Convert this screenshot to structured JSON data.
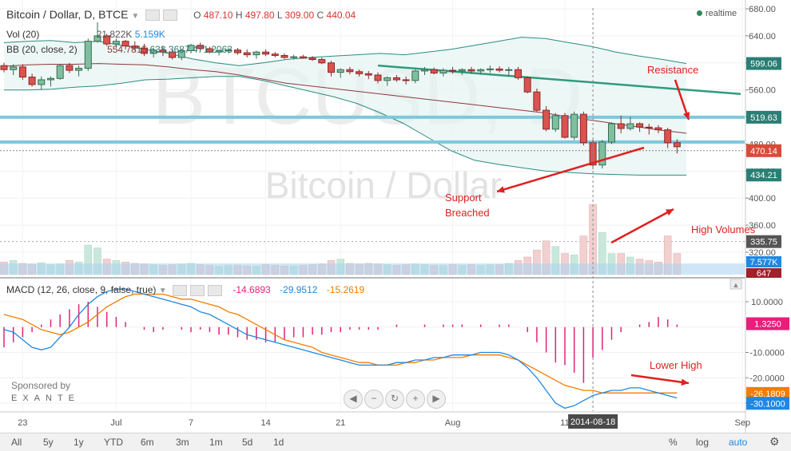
{
  "header": {
    "symbol": "Bitcoin / Dollar, D, BTCE",
    "o_label": "O",
    "o_value": "487.10",
    "h_label": "H",
    "h_value": "497.80",
    "l_label": "L",
    "l_value": "309.00",
    "c_label": "C",
    "c_value": "440.04",
    "realtime": "realtime"
  },
  "vol_legend": {
    "label": "Vol (20)",
    "v1": "21.822K",
    "v2": "5.159K"
  },
  "bb_legend": {
    "label": "BB (20, close, 2)",
    "v1": "554.7815",
    "v2": "638.3687",
    "v3": "471.2063"
  },
  "macd_legend": {
    "label": "MACD (12, 26, close, 9, false, true)",
    "v1": "-14.6893",
    "v2": "-29.9512",
    "v3": "-15.2619"
  },
  "watermark": {
    "big": "BTCUSD, D",
    "small": "Bitcoin / Dollar"
  },
  "sponsor": {
    "line1": "Sponsored by",
    "line2": "EXANTE"
  },
  "price_badges": [
    {
      "text": "599.06",
      "value": 599.06,
      "color": "#2a7f74"
    },
    {
      "text": "519.63",
      "value": 519.63,
      "color": "#2a7f74"
    },
    {
      "text": "470.14",
      "value": 470.14,
      "color": "#d84b3a"
    },
    {
      "text": "434.21",
      "value": 434.21,
      "color": "#2a7f74"
    },
    {
      "text": "335.75",
      "value": 335.75,
      "color": "#555555"
    }
  ],
  "vol_badges": [
    {
      "text": "7.577K",
      "color": "#1e88e5"
    },
    {
      "text": "647",
      "color": "#a0202c"
    }
  ],
  "macd_badges": [
    {
      "text": "1.3250",
      "value": 1.325,
      "color": "#e91e7a"
    },
    {
      "text": "-26.1809",
      "value": -26.1809,
      "color": "#f57c00"
    },
    {
      "text": "-30.1000",
      "value": -30.1,
      "color": "#1e88e5"
    }
  ],
  "annotations": {
    "resistance": "Resistance",
    "support": "Support\nBreached",
    "high_volumes": "High Volumes",
    "lower_high": "Lower High"
  },
  "crosshair_date": "2014-08-18",
  "bottombar": {
    "ranges": [
      "All",
      "5y",
      "1y",
      "YTD",
      "6m",
      "3m",
      "1m",
      "5d",
      "1d"
    ],
    "percent": "%",
    "log": "log",
    "auto": "auto"
  },
  "chart_data": {
    "type": "candlestick",
    "x_ticks": [
      "23",
      "Jul",
      "7",
      "14",
      "21",
      "Aug",
      "11",
      "Sep"
    ],
    "price_axis": {
      "ticks": [
        680,
        640,
        600,
        560,
        520,
        480,
        440,
        400,
        360,
        320
      ],
      "range": [
        300,
        690
      ]
    },
    "candles": [
      [
        596,
        600,
        586,
        590
      ],
      [
        590,
        598,
        582,
        594
      ],
      [
        594,
        598,
        575,
        579
      ],
      [
        579,
        584,
        565,
        568
      ],
      [
        568,
        580,
        560,
        575
      ],
      [
        575,
        580,
        565,
        577
      ],
      [
        577,
        598,
        575,
        596
      ],
      [
        596,
        600,
        585,
        589
      ],
      [
        589,
        596,
        580,
        592
      ],
      [
        592,
        636,
        588,
        632
      ],
      [
        632,
        660,
        630,
        640
      ],
      [
        640,
        643,
        625,
        628
      ],
      [
        628,
        636,
        622,
        632
      ],
      [
        632,
        634,
        620,
        625
      ],
      [
        625,
        632,
        618,
        622
      ],
      [
        622,
        628,
        610,
        614
      ],
      [
        614,
        622,
        608,
        619
      ],
      [
        619,
        625,
        610,
        616
      ],
      [
        616,
        619,
        605,
        608
      ],
      [
        608,
        620,
        604,
        618
      ],
      [
        618,
        628,
        614,
        626
      ],
      [
        626,
        630,
        618,
        621
      ],
      [
        621,
        624,
        614,
        616
      ],
      [
        616,
        620,
        611,
        618
      ],
      [
        618,
        622,
        614,
        619
      ],
      [
        619,
        622,
        612,
        615
      ],
      [
        615,
        620,
        608,
        612
      ],
      [
        612,
        618,
        606,
        616
      ],
      [
        616,
        620,
        610,
        613
      ],
      [
        613,
        616,
        608,
        611
      ],
      [
        611,
        614,
        606,
        608
      ],
      [
        608,
        612,
        605,
        609
      ],
      [
        609,
        612,
        606,
        607
      ],
      [
        607,
        610,
        603,
        605
      ],
      [
        605,
        608,
        598,
        600
      ],
      [
        600,
        603,
        580,
        586
      ],
      [
        586,
        592,
        578,
        590
      ],
      [
        590,
        594,
        583,
        587
      ],
      [
        587,
        590,
        580,
        584
      ],
      [
        584,
        588,
        576,
        582
      ],
      [
        582,
        586,
        570,
        574
      ],
      [
        574,
        580,
        566,
        578
      ],
      [
        578,
        582,
        572,
        575
      ],
      [
        575,
        580,
        568,
        574
      ],
      [
        574,
        590,
        570,
        588
      ],
      [
        588,
        594,
        582,
        590
      ],
      [
        590,
        593,
        583,
        585
      ],
      [
        585,
        592,
        580,
        589
      ],
      [
        589,
        594,
        584,
        588
      ],
      [
        588,
        592,
        582,
        590
      ],
      [
        590,
        594,
        584,
        588
      ],
      [
        588,
        592,
        583,
        590
      ],
      [
        590,
        596,
        585,
        591
      ],
      [
        591,
        595,
        586,
        589
      ],
      [
        589,
        594,
        580,
        590
      ],
      [
        590,
        594,
        575,
        578
      ],
      [
        578,
        580,
        555,
        557
      ],
      [
        557,
        562,
        528,
        530
      ],
      [
        530,
        536,
        499,
        502
      ],
      [
        502,
        526,
        498,
        522
      ],
      [
        522,
        526,
        488,
        490
      ],
      [
        490,
        528,
        486,
        524
      ],
      [
        524,
        528,
        478,
        482
      ],
      [
        482,
        486,
        443,
        449
      ],
      [
        449,
        486,
        444,
        483
      ],
      [
        483,
        512,
        480,
        510
      ],
      [
        510,
        522,
        496,
        503
      ],
      [
        503,
        520,
        500,
        510
      ],
      [
        510,
        512,
        498,
        505
      ],
      [
        505,
        510,
        494,
        504
      ],
      [
        504,
        508,
        496,
        501
      ],
      [
        501,
        504,
        474,
        482
      ],
      [
        482,
        487,
        466,
        476
      ]
    ],
    "bb_mid": [
      595,
      597,
      598,
      598,
      599,
      598,
      597,
      594,
      590,
      587,
      582,
      576,
      570,
      566,
      562,
      558,
      554,
      550,
      546,
      542,
      538,
      534,
      530,
      526,
      520,
      515,
      510,
      505,
      500,
      496
    ],
    "bb_upper": [
      630,
      632,
      633,
      630,
      632,
      626,
      620,
      614,
      606,
      600,
      596,
      600,
      605,
      608,
      610,
      612,
      614,
      612,
      616,
      620,
      626,
      632,
      638,
      636,
      630,
      624,
      616,
      610,
      605,
      599
    ],
    "bb_lower": [
      560,
      560,
      561,
      564,
      566,
      570,
      575,
      576,
      578,
      580,
      580,
      574,
      566,
      558,
      550,
      540,
      526,
      510,
      490,
      470,
      456,
      450,
      445,
      440,
      438,
      436,
      435,
      434,
      434,
      434
    ],
    "trendline_resistance": {
      "from": {
        "index": 40,
        "price": 596
      },
      "to": {
        "index": 91,
        "price": 554
      }
    },
    "support_level": 483,
    "resistance_level": 519.63,
    "volume": [
      0.18,
      0.2,
      0.16,
      0.15,
      0.17,
      0.14,
      0.15,
      0.2,
      0.18,
      0.42,
      0.38,
      0.22,
      0.2,
      0.18,
      0.16,
      0.15,
      0.14,
      0.13,
      0.14,
      0.15,
      0.16,
      0.14,
      0.13,
      0.12,
      0.13,
      0.13,
      0.12,
      0.12,
      0.14,
      0.13,
      0.12,
      0.12,
      0.13,
      0.14,
      0.15,
      0.2,
      0.22,
      0.16,
      0.15,
      0.16,
      0.15,
      0.14,
      0.13,
      0.14,
      0.15,
      0.14,
      0.13,
      0.13,
      0.14,
      0.13,
      0.14,
      0.13,
      0.14,
      0.14,
      0.16,
      0.2,
      0.25,
      0.35,
      0.48,
      0.4,
      0.3,
      0.28,
      0.55,
      1.0,
      0.6,
      0.3,
      0.3,
      0.25,
      0.22,
      0.2,
      0.18,
      0.55,
      0.3
    ],
    "macd_axis": {
      "ticks": [
        10,
        -10,
        -20,
        -30
      ],
      "range": [
        -33,
        17
      ]
    },
    "macd_hist": [
      -8,
      -6,
      -4,
      -2,
      1,
      3,
      5,
      7,
      9,
      10,
      8,
      6,
      4,
      2,
      0,
      -1,
      -2,
      -1,
      0,
      -1,
      -2,
      -1,
      -2,
      -3,
      -3,
      -4,
      -5,
      -5,
      -6,
      -6,
      -5,
      -4,
      -4,
      -3,
      -3,
      -2,
      -2,
      -1,
      -1,
      -1,
      -1,
      0,
      1,
      0,
      0,
      1,
      0,
      1,
      1,
      1,
      0,
      1,
      0,
      1,
      1,
      0,
      -2,
      -6,
      -10,
      -14,
      -15,
      -18,
      -22,
      -12,
      -9,
      -5,
      -2,
      0,
      1,
      2,
      4,
      3,
      1
    ],
    "macd_line": [
      -1,
      -2,
      -5,
      -8,
      -9,
      -8,
      -4,
      0,
      5,
      9,
      12,
      14,
      15,
      15,
      14,
      13,
      12,
      11,
      10,
      9,
      8,
      6,
      5,
      3,
      1,
      -1,
      -3,
      -4,
      -5,
      -6,
      -7,
      -8,
      -9,
      -10,
      -11,
      -12,
      -13,
      -14,
      -15,
      -15,
      -15,
      -15,
      -14,
      -14,
      -13,
      -13,
      -12,
      -12,
      -11,
      -11,
      -11,
      -10,
      -10,
      -10,
      -11,
      -13,
      -16,
      -20,
      -25,
      -30,
      -32,
      -31,
      -29,
      -27,
      -26,
      -25,
      -25,
      -24,
      -24,
      -25,
      -26,
      -27,
      -28
    ],
    "signal_line": [
      5,
      4,
      3,
      1,
      -1,
      -2,
      -3,
      -2,
      0,
      2,
      5,
      8,
      10,
      12,
      13,
      13,
      13,
      13,
      12,
      11,
      11,
      10,
      9,
      8,
      6,
      5,
      3,
      1,
      -1,
      -3,
      -5,
      -6,
      -7,
      -8,
      -10,
      -11,
      -12,
      -13,
      -14,
      -14,
      -15,
      -15,
      -15,
      -14,
      -14,
      -13,
      -13,
      -12,
      -12,
      -12,
      -11,
      -11,
      -11,
      -11,
      -12,
      -13,
      -15,
      -17,
      -19,
      -21,
      -23,
      -24,
      -25,
      -25,
      -26,
      -26,
      -26,
      -26,
      -26,
      -26,
      -26,
      -26,
      -26
    ]
  }
}
